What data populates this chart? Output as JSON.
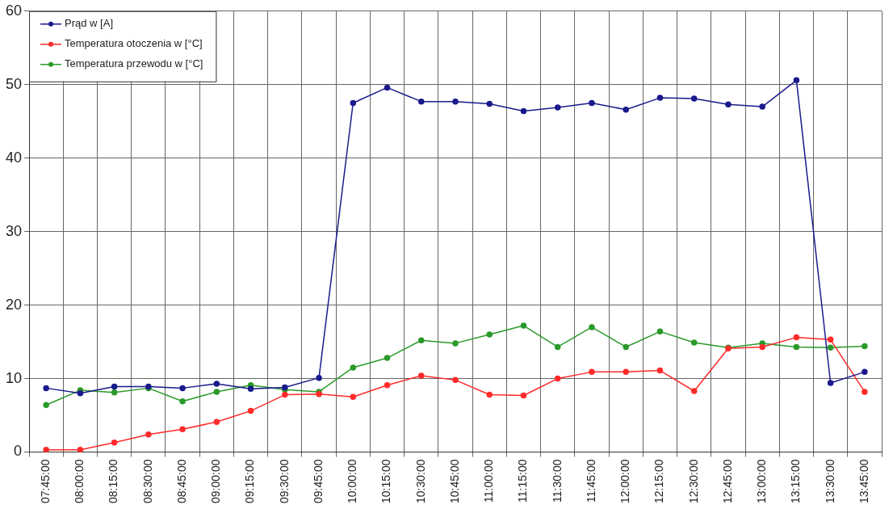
{
  "chart_data": {
    "type": "line",
    "categories": [
      "07:45:00",
      "08:00:00",
      "08:15:00",
      "08:30:00",
      "08:45:00",
      "09:00:00",
      "09:15:00",
      "09:30:00",
      "09:45:00",
      "10:00:00",
      "10:15:00",
      "10:30:00",
      "10:45:00",
      "11:00:00",
      "11:15:00",
      "11:30:00",
      "11:45:00",
      "12:00:00",
      "12:15:00",
      "12:30:00",
      "12:45:00",
      "13:00:00",
      "13:15:00",
      "13:30:00",
      "13:45:00"
    ],
    "series": [
      {
        "name": "Prąd w [A]",
        "color": "#1a1a8c",
        "values": [
          8.7,
          8.0,
          8.9,
          8.9,
          8.7,
          9.3,
          8.6,
          8.8,
          10.1,
          47.5,
          49.6,
          47.7,
          47.7,
          47.4,
          46.4,
          46.9,
          47.5,
          46.6,
          48.2,
          48.1,
          47.3,
          47.0,
          50.6,
          9.4,
          10.9
        ]
      },
      {
        "name": "Temperatura otoczenia w [°C]",
        "color": "#ff2a2a",
        "values": [
          0.3,
          0.3,
          1.3,
          2.4,
          3.1,
          4.1,
          5.6,
          7.8,
          7.9,
          7.5,
          9.1,
          10.4,
          9.8,
          7.8,
          7.7,
          10.0,
          10.9,
          10.9,
          11.1,
          8.3,
          14.1,
          14.3,
          15.6,
          15.3,
          8.2
        ]
      },
      {
        "name": "Temperatura przewodu w [°C]",
        "color": "#2a9a2a",
        "values": [
          6.4,
          8.4,
          8.1,
          8.7,
          6.9,
          8.2,
          9.1,
          8.5,
          8.2,
          11.5,
          12.8,
          15.2,
          14.8,
          16.0,
          17.2,
          14.3,
          17.0,
          14.3,
          16.4,
          14.9,
          14.2,
          14.8,
          14.3,
          14.2,
          14.4
        ]
      }
    ],
    "ylim": [
      0,
      60
    ],
    "yticks": [
      0,
      10,
      20,
      30,
      40,
      50,
      60
    ],
    "grid": true,
    "legend": "top left",
    "marker": "circle",
    "line_style": "solid"
  }
}
